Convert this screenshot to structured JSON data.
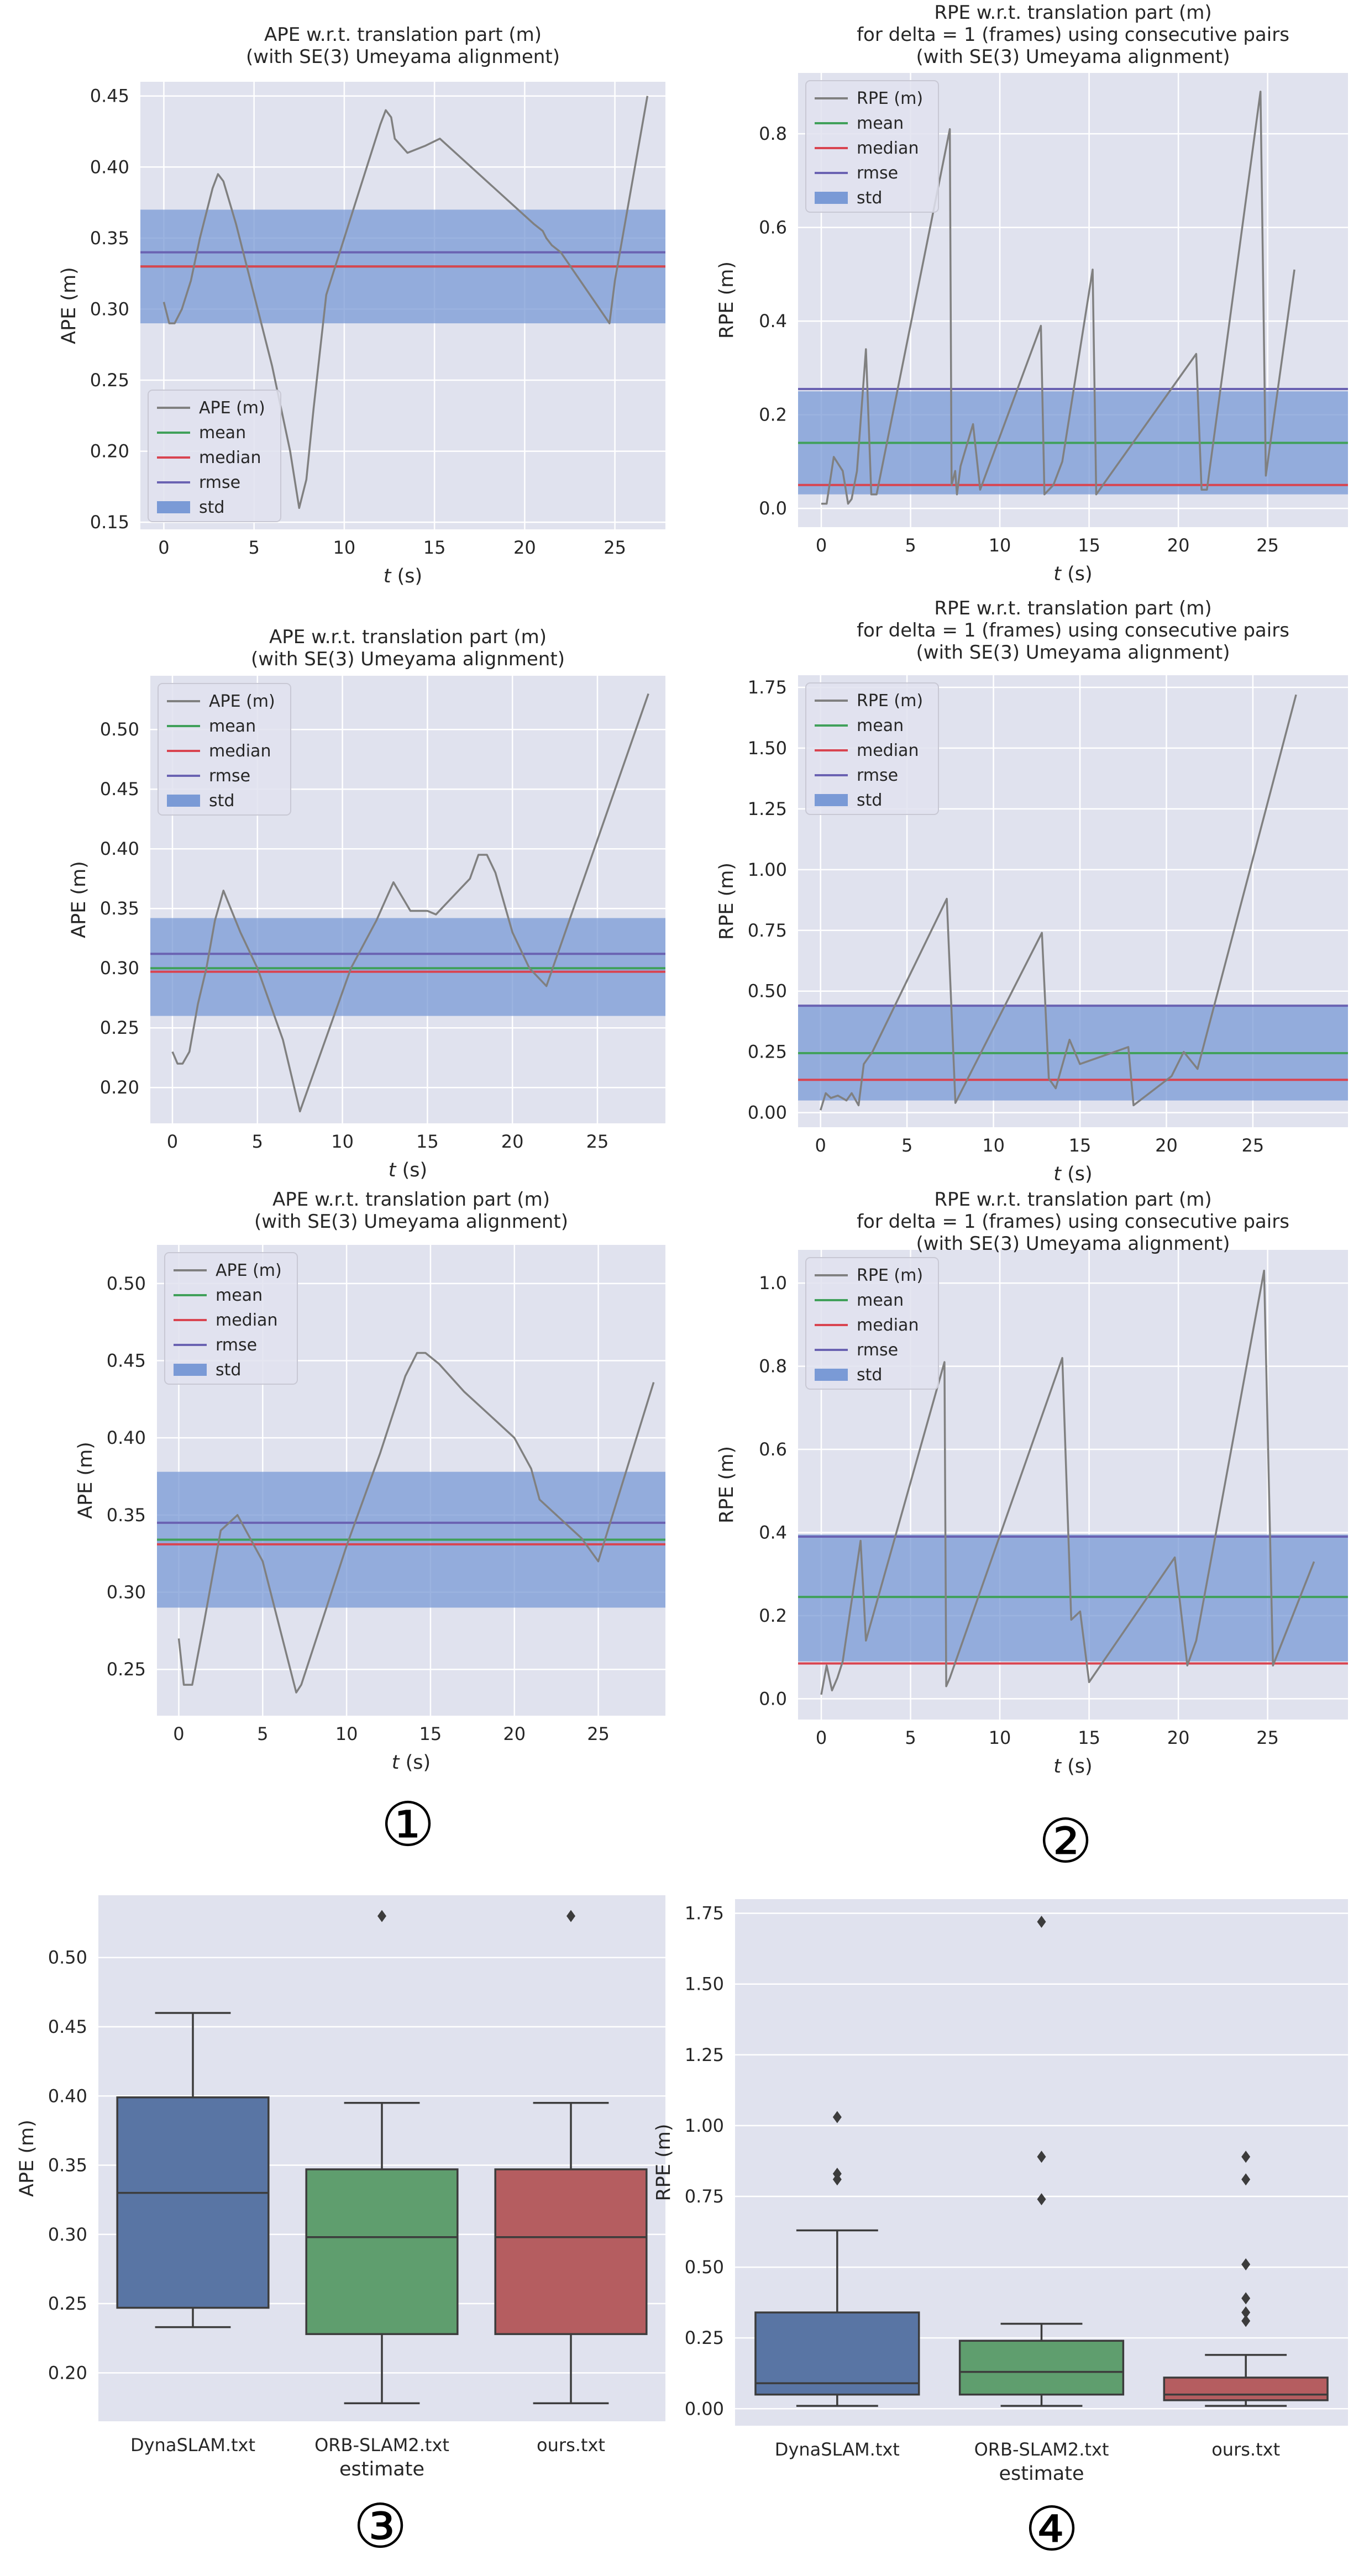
{
  "colors": {
    "plot_bg": "#e0e2ee",
    "grid": "#ffffff",
    "trace": "#808080",
    "mean": "#40a05a",
    "median": "#d94450",
    "rmse": "#6a62b2",
    "std": "#7a9ad6",
    "box_blue": "#5975a4",
    "box_green": "#5f9e6e",
    "box_red": "#b55d60"
  },
  "legend_labels": {
    "ape": [
      "APE (m)",
      "mean",
      "median",
      "rmse",
      "std"
    ],
    "rpe": [
      "RPE (m)",
      "mean",
      "median",
      "rmse",
      "std"
    ]
  },
  "panel_markers": [
    "①",
    "②",
    "③",
    "④"
  ],
  "chart_data": [
    {
      "id": "ape1",
      "type": "line",
      "title": [
        "APE w.r.t. translation part (m)",
        "(with SE(3) Umeyama alignment)"
      ],
      "xlabel": "t (s)",
      "ylabel": "APE (m)",
      "xlim": [
        -1.3,
        27.8
      ],
      "ylim": [
        0.145,
        0.46
      ],
      "xticks": [
        0,
        5,
        10,
        15,
        20,
        25
      ],
      "xtick_labels": [
        "0",
        "5",
        "10",
        "15",
        "20",
        "25"
      ],
      "yticks": [
        0.15,
        0.2,
        0.25,
        0.3,
        0.35,
        0.4,
        0.45
      ],
      "ytick_labels": [
        "0.15",
        "0.20",
        "0.25",
        "0.30",
        "0.35",
        "0.40",
        "0.45"
      ],
      "legend_loc": "lower-left",
      "stats": {
        "mean": 0.33,
        "median": 0.33,
        "rmse": 0.34,
        "std_low": 0.29,
        "std_high": 0.37
      },
      "x": [
        0,
        0.3,
        0.6,
        1.0,
        1.5,
        2.0,
        2.7,
        3.0,
        3.3,
        4.0,
        5.0,
        6.0,
        7.0,
        7.5,
        7.9,
        8.3,
        9.0,
        10.0,
        11.0,
        12.0,
        12.3,
        12.6,
        12.8,
        13.5,
        14.5,
        15.3,
        20.5,
        21.0,
        21.2,
        21.5,
        22.0,
        24.7,
        25.0,
        26.8
      ],
      "y": [
        0.305,
        0.29,
        0.29,
        0.3,
        0.32,
        0.35,
        0.385,
        0.395,
        0.39,
        0.36,
        0.31,
        0.26,
        0.2,
        0.16,
        0.18,
        0.23,
        0.31,
        0.35,
        0.39,
        0.43,
        0.44,
        0.435,
        0.42,
        0.41,
        0.415,
        0.42,
        0.36,
        0.355,
        0.35,
        0.345,
        0.34,
        0.29,
        0.32,
        0.45
      ]
    },
    {
      "id": "rpe1",
      "type": "line",
      "title": [
        "RPE w.r.t. translation part (m)",
        "for delta = 1 (frames) using consecutive pairs",
        "(with SE(3) Umeyama alignment)"
      ],
      "xlabel": "t (s)",
      "ylabel": "RPE (m)",
      "xlim": [
        -1.3,
        29.5
      ],
      "ylim": [
        -0.04,
        0.93
      ],
      "xticks": [
        0,
        5,
        10,
        15,
        20,
        25
      ],
      "xtick_labels": [
        "0",
        "5",
        "10",
        "15",
        "20",
        "25"
      ],
      "yticks": [
        0,
        0.2,
        0.4,
        0.6,
        0.8
      ],
      "ytick_labels": [
        "0.0",
        "0.2",
        "0.4",
        "0.6",
        "0.8"
      ],
      "legend_loc": "upper-left",
      "stats": {
        "mean": 0.14,
        "median": 0.05,
        "rmse": 0.255,
        "std_low": 0.03,
        "std_high": 0.25
      },
      "x": [
        0,
        0.3,
        0.7,
        1.2,
        1.5,
        1.7,
        2.0,
        2.5,
        2.8,
        3.1,
        7.2,
        7.3,
        7.5,
        7.6,
        7.8,
        8.5,
        8.9,
        12.3,
        12.5,
        13.0,
        13.5,
        15.2,
        15.4,
        21.0,
        21.3,
        21.6,
        24.6,
        24.9,
        26.5
      ],
      "y": [
        0.01,
        0.01,
        0.11,
        0.08,
        0.01,
        0.02,
        0.08,
        0.34,
        0.03,
        0.03,
        0.81,
        0.05,
        0.08,
        0.03,
        0.09,
        0.18,
        0.04,
        0.39,
        0.03,
        0.05,
        0.1,
        0.51,
        0.03,
        0.33,
        0.04,
        0.04,
        0.89,
        0.07,
        0.51
      ]
    },
    {
      "id": "ape2",
      "type": "line",
      "title": [
        "APE w.r.t. translation part (m)",
        "(with SE(3) Umeyama alignment)"
      ],
      "xlabel": "t (s)",
      "ylabel": "APE (m)",
      "xlim": [
        -1.3,
        29.0
      ],
      "ylim": [
        0.17,
        0.545
      ],
      "xticks": [
        0,
        5,
        10,
        15,
        20,
        25
      ],
      "xtick_labels": [
        "0",
        "5",
        "10",
        "15",
        "20",
        "25"
      ],
      "yticks": [
        0.2,
        0.25,
        0.3,
        0.35,
        0.4,
        0.45,
        0.5
      ],
      "ytick_labels": [
        "0.20",
        "0.25",
        "0.30",
        "0.35",
        "0.40",
        "0.45",
        "0.50"
      ],
      "legend_loc": "upper-left",
      "stats": {
        "mean": 0.3,
        "median": 0.297,
        "rmse": 0.312,
        "std_low": 0.26,
        "std_high": 0.342
      },
      "x": [
        0,
        0.3,
        0.6,
        1.0,
        1.5,
        2.0,
        2.5,
        3.0,
        4.0,
        5.0,
        6.5,
        7.5,
        8.0,
        9.0,
        10.5,
        12.0,
        13.0,
        14.0,
        15.0,
        15.5,
        16.5,
        17.5,
        18.0,
        18.5,
        19.0,
        20.0,
        21.0,
        22.0,
        28.0
      ],
      "y": [
        0.23,
        0.22,
        0.22,
        0.23,
        0.27,
        0.3,
        0.34,
        0.365,
        0.33,
        0.3,
        0.24,
        0.18,
        0.2,
        0.24,
        0.3,
        0.34,
        0.372,
        0.348,
        0.348,
        0.345,
        0.36,
        0.375,
        0.395,
        0.395,
        0.38,
        0.33,
        0.3,
        0.285,
        0.53
      ]
    },
    {
      "id": "rpe2",
      "type": "line",
      "title": [
        "RPE w.r.t. translation part (m)",
        "for delta = 1 (frames) using consecutive pairs",
        "(with SE(3) Umeyama alignment)"
      ],
      "xlabel": "t (s)",
      "ylabel": "RPE (m)",
      "xlim": [
        -1.3,
        30.5
      ],
      "ylim": [
        -0.06,
        1.8
      ],
      "xticks": [
        0,
        5,
        10,
        15,
        20,
        25
      ],
      "xtick_labels": [
        "0",
        "5",
        "10",
        "15",
        "20",
        "25"
      ],
      "yticks": [
        0,
        0.25,
        0.5,
        0.75,
        1.0,
        1.25,
        1.5,
        1.75
      ],
      "ytick_labels": [
        "0.00",
        "0.25",
        "0.50",
        "0.75",
        "1.00",
        "1.25",
        "1.50",
        "1.75"
      ],
      "legend_loc": "upper-left",
      "stats": {
        "mean": 0.245,
        "median": 0.135,
        "rmse": 0.44,
        "std_low": 0.05,
        "std_high": 0.44
      },
      "x": [
        0,
        0.3,
        0.6,
        1.0,
        1.5,
        1.8,
        2.2,
        2.5,
        3.0,
        7.3,
        7.8,
        12.8,
        13.2,
        13.6,
        14.0,
        14.4,
        15.0,
        17.8,
        18.1,
        20.3,
        21.0,
        21.8,
        27.5
      ],
      "y": [
        0.01,
        0.08,
        0.06,
        0.07,
        0.05,
        0.08,
        0.03,
        0.2,
        0.25,
        0.88,
        0.04,
        0.74,
        0.14,
        0.1,
        0.2,
        0.3,
        0.2,
        0.27,
        0.03,
        0.15,
        0.25,
        0.18,
        1.72
      ]
    },
    {
      "id": "ape3",
      "type": "line",
      "title": [
        "APE w.r.t. translation part (m)",
        "(with SE(3) Umeyama alignment)"
      ],
      "xlabel": "t (s)",
      "ylabel": "APE (m)",
      "xlim": [
        -1.3,
        29.0
      ],
      "ylim": [
        0.22,
        0.525
      ],
      "xticks": [
        0,
        5,
        10,
        15,
        20,
        25
      ],
      "xtick_labels": [
        "0",
        "5",
        "10",
        "15",
        "20",
        "25"
      ],
      "yticks": [
        0.25,
        0.3,
        0.35,
        0.4,
        0.45,
        0.5
      ],
      "ytick_labels": [
        "0.25",
        "0.30",
        "0.35",
        "0.40",
        "0.45",
        "0.50"
      ],
      "legend_loc": "upper-left",
      "stats": {
        "mean": 0.334,
        "median": 0.331,
        "rmse": 0.345,
        "std_low": 0.29,
        "std_high": 0.378
      },
      "x": [
        0,
        0.3,
        0.8,
        1.5,
        2.5,
        3.5,
        5.0,
        7.0,
        7.3,
        8.5,
        10.0,
        12.0,
        13.5,
        14.2,
        14.7,
        15.5,
        17.0,
        19.0,
        20.0,
        20.5,
        21.0,
        21.5,
        24.0,
        25.0,
        28.3
      ],
      "y": [
        0.27,
        0.24,
        0.24,
        0.28,
        0.34,
        0.35,
        0.32,
        0.235,
        0.24,
        0.28,
        0.33,
        0.39,
        0.44,
        0.455,
        0.455,
        0.448,
        0.43,
        0.41,
        0.4,
        0.39,
        0.38,
        0.36,
        0.335,
        0.32,
        0.436
      ]
    },
    {
      "id": "rpe3",
      "type": "line",
      "title": [
        "RPE w.r.t. translation part (m)",
        "for delta = 1 (frames) using consecutive pairs",
        "(with SE(3) Umeyama alignment)"
      ],
      "xlabel": "t (s)",
      "ylabel": "RPE (m)",
      "xlim": [
        -1.3,
        29.5
      ],
      "ylim": [
        -0.05,
        1.08
      ],
      "xticks": [
        0,
        5,
        10,
        15,
        20,
        25
      ],
      "xtick_labels": [
        "0",
        "5",
        "10",
        "15",
        "20",
        "25"
      ],
      "yticks": [
        0,
        0.2,
        0.4,
        0.6,
        0.8,
        1.0
      ],
      "ytick_labels": [
        "0.0",
        "0.2",
        "0.4",
        "0.6",
        "0.8",
        "1.0"
      ],
      "legend_loc": "upper-left",
      "stats": {
        "mean": 0.245,
        "median": 0.085,
        "rmse": 0.39,
        "std_low": 0.09,
        "std_high": 0.395
      },
      "x": [
        0,
        0.3,
        0.6,
        0.9,
        1.2,
        2.2,
        2.5,
        6.9,
        7.0,
        7.2,
        13.5,
        14.0,
        14.5,
        15.0,
        19.8,
        20.5,
        21.0,
        24.8,
        25.3,
        27.6
      ],
      "y": [
        0.01,
        0.08,
        0.02,
        0.05,
        0.09,
        0.38,
        0.14,
        0.81,
        0.03,
        0.05,
        0.82,
        0.19,
        0.21,
        0.04,
        0.34,
        0.08,
        0.14,
        1.03,
        0.08,
        0.33
      ]
    },
    {
      "id": "box_ape",
      "type": "box",
      "xlabel": "estimate",
      "ylabel": "APE (m)",
      "ylim": [
        0.165,
        0.545
      ],
      "yticks": [
        0.2,
        0.25,
        0.3,
        0.35,
        0.4,
        0.45,
        0.5
      ],
      "ytick_labels": [
        "0.20",
        "0.25",
        "0.30",
        "0.35",
        "0.40",
        "0.45",
        "0.50"
      ],
      "categories": [
        "DynaSLAM.txt",
        "ORB-SLAM2.txt",
        "ours.txt"
      ],
      "boxes": [
        {
          "whislo": 0.233,
          "q1": 0.247,
          "med": 0.33,
          "q3": 0.399,
          "whishi": 0.46,
          "fliers": [],
          "color": "#5975a4"
        },
        {
          "whislo": 0.178,
          "q1": 0.228,
          "med": 0.298,
          "q3": 0.347,
          "whishi": 0.395,
          "fliers": [
            0.53
          ],
          "color": "#5f9e6e"
        },
        {
          "whislo": 0.178,
          "q1": 0.228,
          "med": 0.298,
          "q3": 0.347,
          "whishi": 0.395,
          "fliers": [
            0.53
          ],
          "color": "#b55d60"
        }
      ]
    },
    {
      "id": "box_rpe",
      "type": "box",
      "xlabel": "estimate",
      "ylabel": "RPE (m)",
      "ylim": [
        -0.06,
        1.8
      ],
      "yticks": [
        0,
        0.25,
        0.5,
        0.75,
        1.0,
        1.25,
        1.5,
        1.75
      ],
      "ytick_labels": [
        "0.00",
        "0.25",
        "0.50",
        "0.75",
        "1.00",
        "1.25",
        "1.50",
        "1.75"
      ],
      "categories": [
        "DynaSLAM.txt",
        "ORB-SLAM2.txt",
        "ours.txt"
      ],
      "boxes": [
        {
          "whislo": 0.01,
          "q1": 0.05,
          "med": 0.09,
          "q3": 0.34,
          "whishi": 0.63,
          "fliers": [
            0.81,
            0.83,
            1.03
          ],
          "color": "#5975a4"
        },
        {
          "whislo": 0.01,
          "q1": 0.05,
          "med": 0.13,
          "q3": 0.24,
          "whishi": 0.3,
          "fliers": [
            0.74,
            0.89,
            1.72
          ],
          "color": "#5f9e6e"
        },
        {
          "whislo": 0.01,
          "q1": 0.03,
          "med": 0.05,
          "q3": 0.11,
          "whishi": 0.19,
          "fliers": [
            0.31,
            0.34,
            0.39,
            0.51,
            0.81,
            0.89
          ],
          "color": "#b55d60"
        }
      ]
    }
  ]
}
